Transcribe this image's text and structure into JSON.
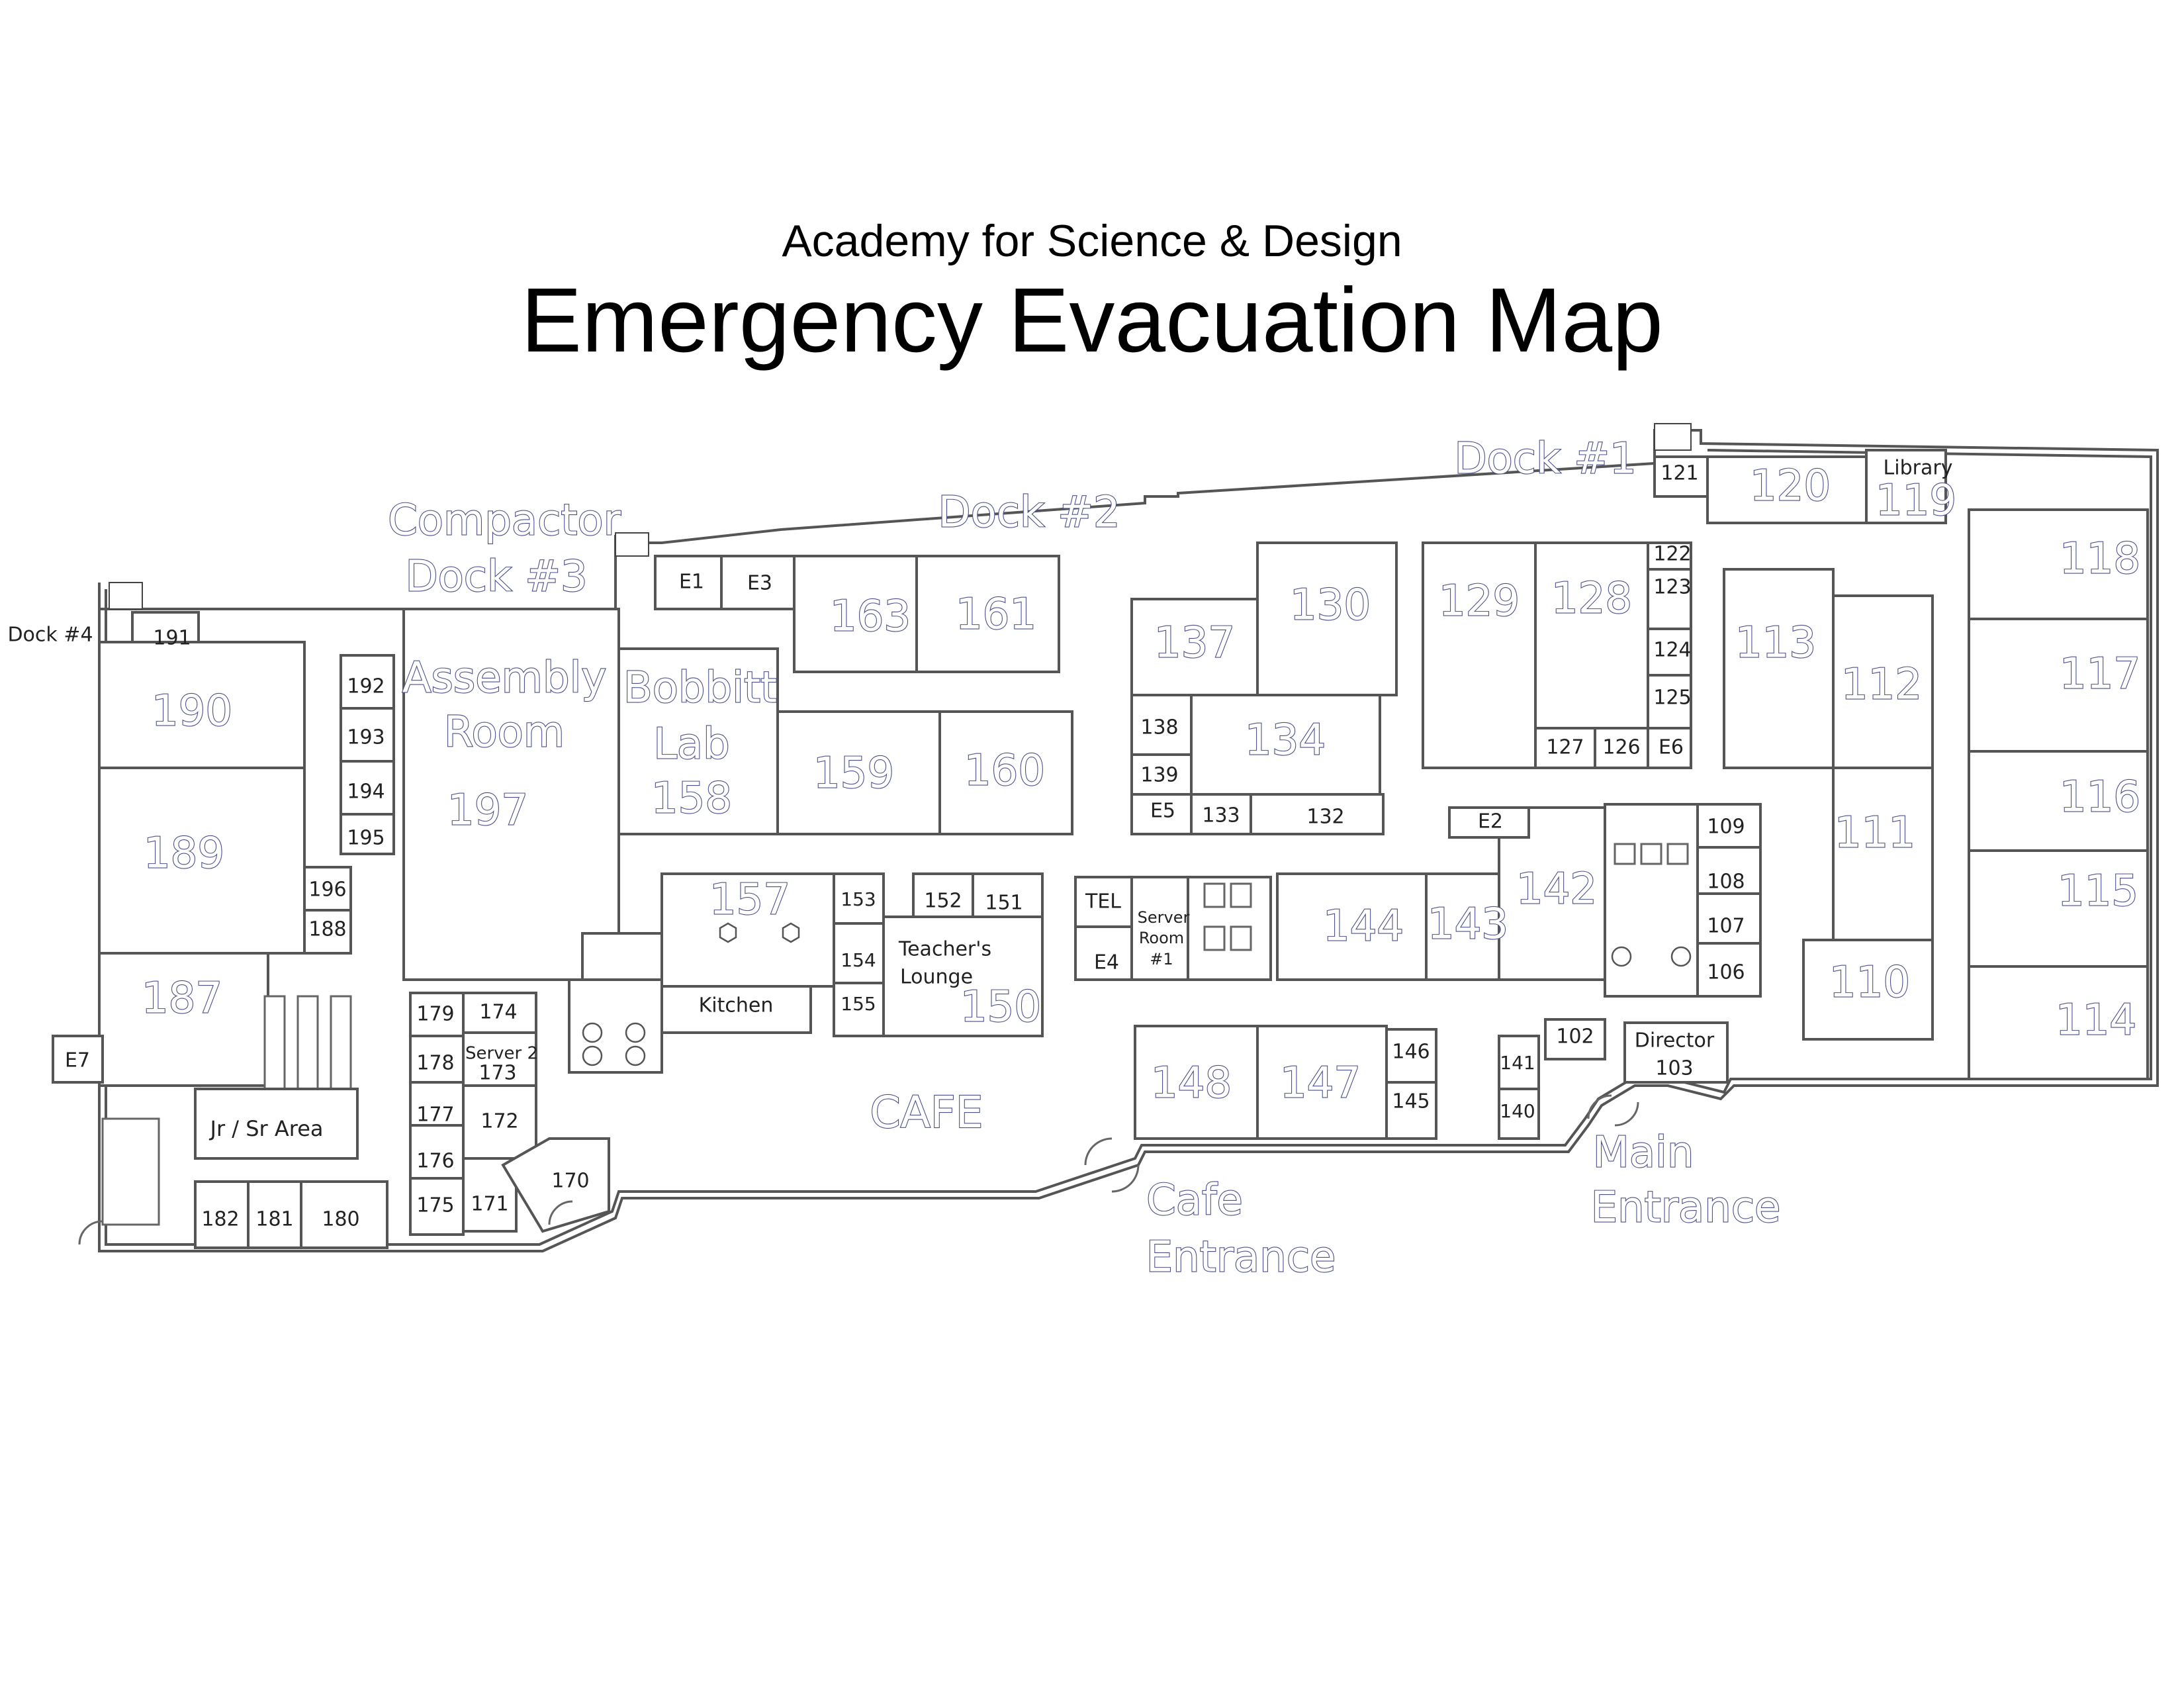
{
  "header": {
    "subtitle": "Academy for Science & Design",
    "title": "Emergency Evacuation Map"
  },
  "colors": {
    "label_outline": "#4a4f8c",
    "wall": "#555555",
    "background": "#ffffff"
  },
  "areas": {
    "dock1": "Dock #1",
    "dock2": "Dock #2",
    "compactor": "Compactor",
    "dock3": "Dock #3",
    "dock4": "Dock #4",
    "assembly_1": "Assembly",
    "assembly_2": "Room",
    "bobbitt_1": "Bobbitt",
    "bobbitt_2": "Lab",
    "library": "Library",
    "teachers_1": "Teacher's",
    "teachers_2": "Lounge",
    "kitchen": "Kitchen",
    "server2": "Server 2",
    "server1_1": "Server",
    "server1_2": "Room",
    "server1_3": "#1",
    "tel": "TEL",
    "director": "Director",
    "cafe": "CAFE",
    "jr_sr": "Jr / Sr Area",
    "main_entrance_1": "Main",
    "main_entrance_2": "Entrance",
    "cafe_entrance_1": "Cafe",
    "cafe_entrance_2": "Entrance"
  },
  "rooms": {
    "r103": "103",
    "r102": "102",
    "r106": "106",
    "r107": "107",
    "r108": "108",
    "r109": "109",
    "r110": "110",
    "r111": "111",
    "r112": "112",
    "r113": "113",
    "r114": "114",
    "r115": "115",
    "r116": "116",
    "r117": "117",
    "r118": "118",
    "r119": "119",
    "r120": "120",
    "r121": "121",
    "r122": "122",
    "r123": "123",
    "r124": "124",
    "r125": "125",
    "r126": "126",
    "r127": "127",
    "r128": "128",
    "r129": "129",
    "r130": "130",
    "r132": "132",
    "r133": "133",
    "r134": "134",
    "r137": "137",
    "r138": "138",
    "r139": "139",
    "r140": "140",
    "r141": "141",
    "r142": "142",
    "r143": "143",
    "r144": "144",
    "r145": "145",
    "r146": "146",
    "r147": "147",
    "r148": "148",
    "r150": "150",
    "r151": "151",
    "r152": "152",
    "r153": "153",
    "r154": "154",
    "r155": "155",
    "r157": "157",
    "r158": "158",
    "r159": "159",
    "r160": "160",
    "r161": "161",
    "r163": "163",
    "r170": "170",
    "r171": "171",
    "r172": "172",
    "r173": "173",
    "r174": "174",
    "r175": "175",
    "r176": "176",
    "r177": "177",
    "r178": "178",
    "r179": "179",
    "r180": "180",
    "r181": "181",
    "r182": "182",
    "r187": "187",
    "r188": "188",
    "r189": "189",
    "r190": "190",
    "r191": "191",
    "r192": "192",
    "r193": "193",
    "r194": "194",
    "r195": "195",
    "r196": "196",
    "r197": "197",
    "e1": "E1",
    "e2": "E2",
    "e3": "E3",
    "e4": "E4",
    "e5": "E5",
    "e6": "E6",
    "e7": "E7"
  }
}
